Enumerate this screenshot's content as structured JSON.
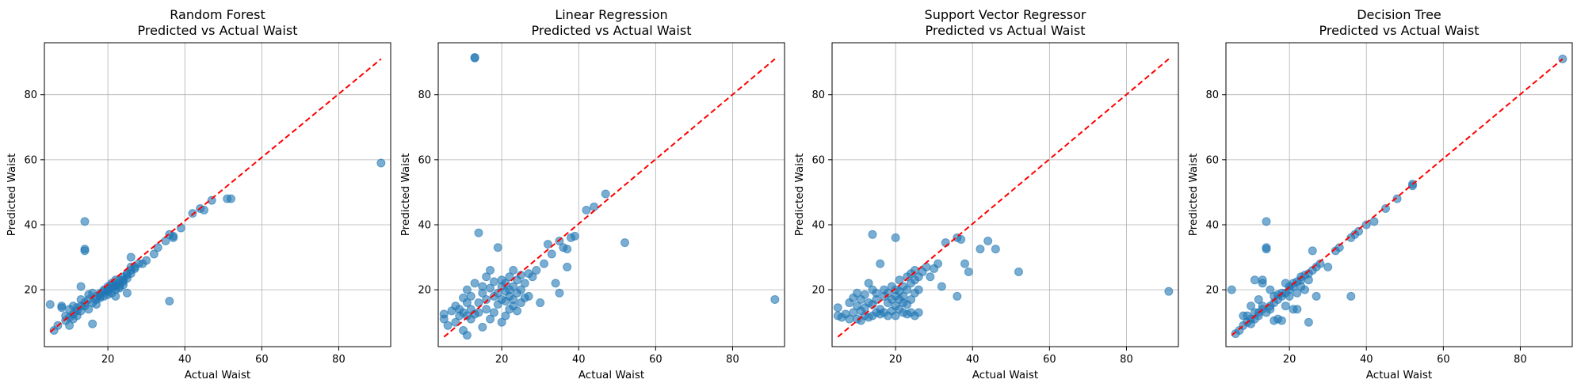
{
  "chart_data": [
    {
      "type": "scatter",
      "title": "Random Forest\nPredicted vs Actual Waist",
      "xlabel": "Actual Waist",
      "ylabel": "Predicted Waist",
      "xlim": [
        3.5,
        93.5
      ],
      "ylim": [
        2.5,
        96
      ],
      "xticks": [
        20,
        40,
        60,
        80
      ],
      "yticks": [
        20,
        40,
        60,
        80
      ],
      "grid": true,
      "point_color": "#1f77b4",
      "reference_line": {
        "from": [
          5,
          7
        ],
        "to": [
          91,
          91
        ],
        "color": "#ff0000",
        "style": "dashed"
      },
      "points": [
        [
          5,
          15.5
        ],
        [
          6,
          7.5
        ],
        [
          7,
          9
        ],
        [
          8,
          14.5
        ],
        [
          8,
          15
        ],
        [
          9,
          10.5
        ],
        [
          9,
          12
        ],
        [
          10,
          9
        ],
        [
          10,
          14
        ],
        [
          10,
          11.5
        ],
        [
          11,
          12.5
        ],
        [
          11,
          11
        ],
        [
          11,
          15
        ],
        [
          12,
          13.5
        ],
        [
          12,
          12
        ],
        [
          12,
          14.5
        ],
        [
          13,
          15
        ],
        [
          13,
          13.5
        ],
        [
          13,
          17
        ],
        [
          13,
          21
        ],
        [
          14,
          41
        ],
        [
          14,
          32
        ],
        [
          14,
          32.5
        ],
        [
          14,
          15
        ],
        [
          14,
          16
        ],
        [
          15,
          14
        ],
        [
          15,
          17
        ],
        [
          15,
          18.5
        ],
        [
          16,
          9.5
        ],
        [
          16,
          16
        ],
        [
          16,
          19
        ],
        [
          17,
          17
        ],
        [
          17,
          18
        ],
        [
          17,
          15.5
        ],
        [
          18,
          19
        ],
        [
          18,
          18
        ],
        [
          18,
          17.5
        ],
        [
          19,
          19.5
        ],
        [
          19,
          18
        ],
        [
          19,
          20
        ],
        [
          20,
          20
        ],
        [
          20,
          21
        ],
        [
          20,
          19.5
        ],
        [
          20,
          18.5
        ],
        [
          21,
          20.5
        ],
        [
          21,
          21.5
        ],
        [
          21,
          19
        ],
        [
          21,
          22
        ],
        [
          22,
          21.5
        ],
        [
          22,
          21
        ],
        [
          22,
          20
        ],
        [
          22,
          18
        ],
        [
          22,
          23
        ],
        [
          23,
          22
        ],
        [
          23,
          23
        ],
        [
          23,
          21
        ],
        [
          23,
          20.5
        ],
        [
          24,
          22.5
        ],
        [
          24,
          24
        ],
        [
          24,
          23
        ],
        [
          24,
          21.5
        ],
        [
          25,
          24.5
        ],
        [
          25,
          23.5
        ],
        [
          25,
          25
        ],
        [
          25,
          19
        ],
        [
          26,
          25
        ],
        [
          26,
          26
        ],
        [
          26,
          27
        ],
        [
          26,
          30
        ],
        [
          27,
          26.5
        ],
        [
          27,
          27
        ],
        [
          28,
          28
        ],
        [
          29,
          28
        ],
        [
          30,
          29
        ],
        [
          32,
          31
        ],
        [
          33,
          33
        ],
        [
          35,
          35
        ],
        [
          36,
          16.5
        ],
        [
          36,
          37
        ],
        [
          37,
          36
        ],
        [
          37,
          36.5
        ],
        [
          39,
          39
        ],
        [
          42,
          43.5
        ],
        [
          44,
          45
        ],
        [
          45,
          44.5
        ],
        [
          47,
          47.5
        ],
        [
          51,
          48
        ],
        [
          52,
          48
        ],
        [
          91,
          59
        ]
      ]
    },
    {
      "type": "scatter",
      "title": "Linear Regression\nPredicted vs Actual Waist",
      "xlabel": "Actual Waist",
      "ylabel": "Predicted Waist",
      "xlim": [
        3.5,
        93.5
      ],
      "ylim": [
        2.5,
        96
      ],
      "xticks": [
        20,
        40,
        60,
        80
      ],
      "yticks": [
        20,
        40,
        60,
        80
      ],
      "grid": true,
      "point_color": "#1f77b4",
      "reference_line": {
        "from": [
          5,
          5.5
        ],
        "to": [
          91,
          91
        ],
        "color": "#ff0000",
        "style": "dashed"
      },
      "points": [
        [
          5,
          12.5
        ],
        [
          5,
          11
        ],
        [
          6,
          9
        ],
        [
          7,
          13.5
        ],
        [
          8,
          10
        ],
        [
          8,
          15
        ],
        [
          9,
          12
        ],
        [
          9,
          14
        ],
        [
          10,
          7.5
        ],
        [
          10,
          17.5
        ],
        [
          10,
          13
        ],
        [
          11,
          6
        ],
        [
          11,
          12
        ],
        [
          11,
          16
        ],
        [
          11,
          20
        ],
        [
          12,
          14
        ],
        [
          12,
          11
        ],
        [
          12,
          18
        ],
        [
          13,
          91.5
        ],
        [
          13,
          91.3
        ],
        [
          13,
          12.5
        ],
        [
          13,
          22
        ],
        [
          14,
          37.5
        ],
        [
          14,
          16
        ],
        [
          14,
          13
        ],
        [
          15,
          19
        ],
        [
          15,
          8.5
        ],
        [
          15,
          21
        ],
        [
          16,
          14
        ],
        [
          16,
          17
        ],
        [
          16,
          24
        ],
        [
          17,
          11
        ],
        [
          17,
          20.5
        ],
        [
          17,
          26
        ],
        [
          18,
          13
        ],
        [
          18,
          18
        ],
        [
          18,
          22.5
        ],
        [
          19,
          15.5
        ],
        [
          19,
          19
        ],
        [
          19,
          33
        ],
        [
          20,
          10
        ],
        [
          20,
          17
        ],
        [
          20,
          21
        ],
        [
          20,
          23
        ],
        [
          21,
          12
        ],
        [
          21,
          16.5
        ],
        [
          21,
          19.5
        ],
        [
          21,
          22
        ],
        [
          22,
          14
        ],
        [
          22,
          18
        ],
        [
          22,
          20
        ],
        [
          22,
          24
        ],
        [
          23,
          15
        ],
        [
          23,
          17
        ],
        [
          23,
          21
        ],
        [
          23,
          26
        ],
        [
          24,
          13.5
        ],
        [
          24,
          19
        ],
        [
          24,
          23
        ],
        [
          25,
          16
        ],
        [
          25,
          20
        ],
        [
          25,
          24.5
        ],
        [
          26,
          17.5
        ],
        [
          26,
          22
        ],
        [
          27,
          25
        ],
        [
          27,
          18
        ],
        [
          28,
          24
        ],
        [
          29,
          26
        ],
        [
          30,
          16
        ],
        [
          31,
          28
        ],
        [
          32,
          34
        ],
        [
          33,
          31
        ],
        [
          34,
          22
        ],
        [
          35,
          19
        ],
        [
          35,
          35
        ],
        [
          36,
          33
        ],
        [
          37,
          32.5
        ],
        [
          37,
          27
        ],
        [
          38,
          36
        ],
        [
          39,
          36.5
        ],
        [
          42,
          44.5
        ],
        [
          44,
          45.5
        ],
        [
          47,
          49.5
        ],
        [
          52,
          34.5
        ],
        [
          91,
          17
        ]
      ]
    },
    {
      "type": "scatter",
      "title": "Support Vector Regressor\nPredicted vs Actual Waist",
      "xlabel": "Actual Waist",
      "ylabel": "Predicted Waist",
      "xlim": [
        3.5,
        93.5
      ],
      "ylim": [
        2.5,
        96
      ],
      "xticks": [
        20,
        40,
        60,
        80
      ],
      "yticks": [
        20,
        40,
        60,
        80
      ],
      "grid": true,
      "point_color": "#1f77b4",
      "reference_line": {
        "from": [
          5,
          5.5
        ],
        "to": [
          91,
          91
        ],
        "color": "#ff0000",
        "style": "dashed"
      },
      "points": [
        [
          5,
          14.5
        ],
        [
          5,
          12
        ],
        [
          6,
          11.5
        ],
        [
          7,
          12.5
        ],
        [
          8,
          11
        ],
        [
          8,
          16
        ],
        [
          9,
          13
        ],
        [
          9,
          17.5
        ],
        [
          10,
          11
        ],
        [
          10,
          15
        ],
        [
          10,
          19
        ],
        [
          11,
          10.5
        ],
        [
          11,
          13.5
        ],
        [
          11,
          17
        ],
        [
          12,
          12
        ],
        [
          12,
          14.5
        ],
        [
          12,
          18.5
        ],
        [
          13,
          11.5
        ],
        [
          13,
          16
        ],
        [
          13,
          22
        ],
        [
          14,
          37
        ],
        [
          14,
          12
        ],
        [
          14,
          15.5
        ],
        [
          14,
          20
        ],
        [
          15,
          13
        ],
        [
          15,
          17
        ],
        [
          15,
          19
        ],
        [
          16,
          12.5
        ],
        [
          16,
          14
        ],
        [
          16,
          28
        ],
        [
          17,
          13
        ],
        [
          17,
          18
        ],
        [
          17,
          20
        ],
        [
          18,
          12
        ],
        [
          18,
          16
        ],
        [
          18,
          19
        ],
        [
          19,
          13.5
        ],
        [
          19,
          17
        ],
        [
          19,
          21
        ],
        [
          20,
          12
        ],
        [
          20,
          15
        ],
        [
          20,
          18
        ],
        [
          20,
          20
        ],
        [
          20,
          36
        ],
        [
          21,
          14
        ],
        [
          21,
          17
        ],
        [
          21,
          19.5
        ],
        [
          21,
          23
        ],
        [
          22,
          13
        ],
        [
          22,
          16
        ],
        [
          22,
          18
        ],
        [
          22,
          21
        ],
        [
          23,
          12.5
        ],
        [
          23,
          15.5
        ],
        [
          23,
          20
        ],
        [
          23,
          24
        ],
        [
          24,
          13
        ],
        [
          24,
          17
        ],
        [
          24,
          22
        ],
        [
          24,
          25
        ],
        [
          25,
          12
        ],
        [
          25,
          19
        ],
        [
          25,
          23
        ],
        [
          25,
          26
        ],
        [
          26,
          13
        ],
        [
          26,
          20
        ],
        [
          26,
          24
        ],
        [
          27,
          25.5
        ],
        [
          28,
          27
        ],
        [
          29,
          24
        ],
        [
          30,
          26.5
        ],
        [
          31,
          28
        ],
        [
          32,
          21
        ],
        [
          33,
          34.5
        ],
        [
          36,
          36
        ],
        [
          36,
          18
        ],
        [
          37,
          35.5
        ],
        [
          38,
          28
        ],
        [
          39,
          25.5
        ],
        [
          42,
          32.5
        ],
        [
          44,
          35
        ],
        [
          46,
          32.5
        ],
        [
          52,
          25.5
        ],
        [
          91,
          19.5
        ]
      ]
    },
    {
      "type": "scatter",
      "title": "Decision Tree\nPredicted vs Actual Waist",
      "xlabel": "Actual Waist",
      "ylabel": "Predicted Waist",
      "xlim": [
        3.5,
        93.5
      ],
      "ylim": [
        2.5,
        96
      ],
      "xticks": [
        20,
        40,
        60,
        80
      ],
      "yticks": [
        20,
        40,
        60,
        80
      ],
      "grid": true,
      "point_color": "#1f77b4",
      "reference_line": {
        "from": [
          5,
          6
        ],
        "to": [
          91,
          91
        ],
        "color": "#ff0000",
        "style": "dashed"
      },
      "points": [
        [
          5,
          20
        ],
        [
          6,
          6.5
        ],
        [
          7,
          7.5
        ],
        [
          8,
          9
        ],
        [
          8,
          12
        ],
        [
          9,
          10
        ],
        [
          9,
          12
        ],
        [
          10,
          9.5
        ],
        [
          10,
          11
        ],
        [
          10,
          15
        ],
        [
          11,
          23
        ],
        [
          11,
          11
        ],
        [
          11,
          13
        ],
        [
          12,
          12
        ],
        [
          12,
          13
        ],
        [
          12,
          17
        ],
        [
          13,
          22
        ],
        [
          13,
          23
        ],
        [
          13,
          14
        ],
        [
          13,
          15
        ],
        [
          14,
          41
        ],
        [
          14,
          33
        ],
        [
          14,
          32.5
        ],
        [
          14,
          13
        ],
        [
          15,
          14
        ],
        [
          15,
          15
        ],
        [
          15,
          20
        ],
        [
          16,
          10.5
        ],
        [
          16,
          16
        ],
        [
          16,
          18
        ],
        [
          17,
          11
        ],
        [
          17,
          17
        ],
        [
          17,
          18.5
        ],
        [
          18,
          10.5
        ],
        [
          18,
          18
        ],
        [
          18,
          19
        ],
        [
          19,
          15
        ],
        [
          19,
          19
        ],
        [
          19,
          22
        ],
        [
          20,
          20
        ],
        [
          20,
          21
        ],
        [
          20,
          18
        ],
        [
          21,
          14
        ],
        [
          21,
          21
        ],
        [
          21,
          22
        ],
        [
          22,
          19
        ],
        [
          22,
          14
        ],
        [
          22,
          22.5
        ],
        [
          23,
          23
        ],
        [
          23,
          21
        ],
        [
          23,
          24
        ],
        [
          24,
          24.5
        ],
        [
          24,
          20
        ],
        [
          25,
          10
        ],
        [
          25,
          25
        ],
        [
          25,
          23
        ],
        [
          26,
          26
        ],
        [
          26,
          32
        ],
        [
          27,
          27
        ],
        [
          27,
          18
        ],
        [
          28,
          28
        ],
        [
          30,
          27
        ],
        [
          32,
          32
        ],
        [
          33,
          33
        ],
        [
          36,
          18
        ],
        [
          36,
          36
        ],
        [
          37,
          37
        ],
        [
          38,
          38
        ],
        [
          40,
          40
        ],
        [
          42,
          41
        ],
        [
          45,
          45
        ],
        [
          48,
          48
        ],
        [
          52,
          52
        ],
        [
          52,
          52.5
        ],
        [
          91,
          91
        ]
      ]
    }
  ]
}
